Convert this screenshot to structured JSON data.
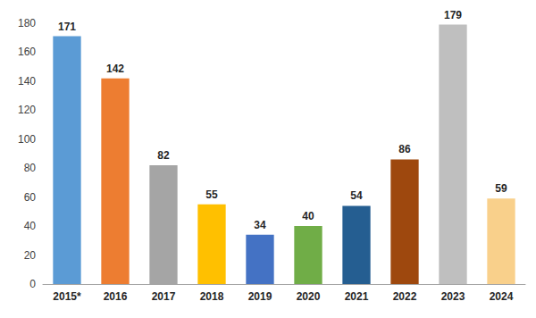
{
  "chart_data": {
    "type": "bar",
    "categories": [
      "2015*",
      "2016",
      "2017",
      "2018",
      "2019",
      "2020",
      "2021",
      "2022",
      "2023",
      "2024"
    ],
    "values": [
      171,
      142,
      82,
      55,
      34,
      40,
      54,
      86,
      179,
      59
    ],
    "colors": [
      "#5B9BD5",
      "#ED7D31",
      "#A5A5A5",
      "#FFC000",
      "#4472C4",
      "#70AD47",
      "#255E91",
      "#9E480E",
      "#BFBFBF",
      "#F9D08B"
    ],
    "ylim": [
      0,
      180
    ],
    "yticks": [
      0,
      20,
      40,
      60,
      80,
      100,
      120,
      140,
      160,
      180
    ],
    "grid": false,
    "data_labels": true
  }
}
